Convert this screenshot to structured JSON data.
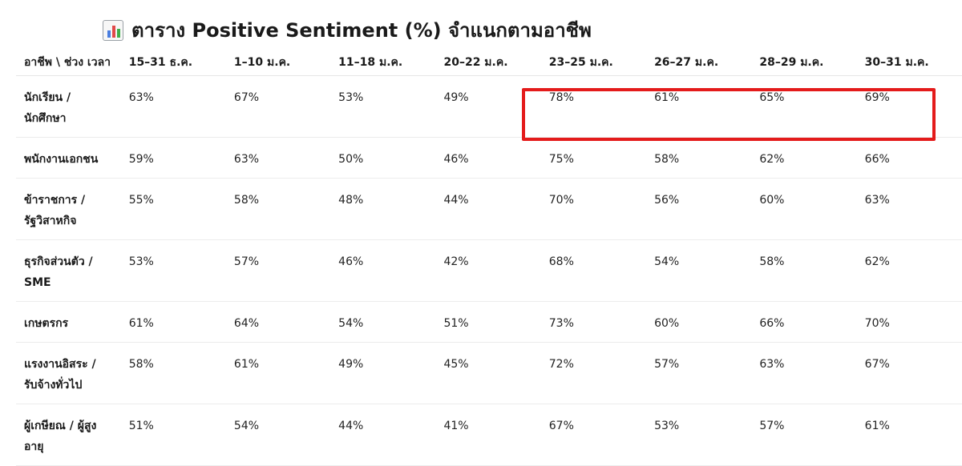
{
  "title": {
    "icon": "bar-chart-icon",
    "text": "ตาราง Positive Sentiment (%) จำแนกตามอาชีพ"
  },
  "table": {
    "corner_header": "อาชีพ \\ ช่วง เวลา",
    "periods": [
      "15–31 ธ.ค.",
      "1–10 ม.ค.",
      "11–18 ม.ค.",
      "20–22 ม.ค.",
      "23–25 ม.ค.",
      "26–27 ม.ค.",
      "28–29 ม.ค.",
      "30–31 ม.ค."
    ],
    "rows": [
      {
        "occupation": "นักเรียน / นักศึกษา",
        "values": [
          "63%",
          "67%",
          "53%",
          "49%",
          "78%",
          "61%",
          "65%",
          "69%"
        ]
      },
      {
        "occupation": "พนักงานเอกชน",
        "values": [
          "59%",
          "63%",
          "50%",
          "46%",
          "75%",
          "58%",
          "62%",
          "66%"
        ]
      },
      {
        "occupation": "ข้าราชการ / รัฐวิสาหกิจ",
        "values": [
          "55%",
          "58%",
          "48%",
          "44%",
          "70%",
          "56%",
          "60%",
          "63%"
        ]
      },
      {
        "occupation": "ธุรกิจส่วนตัว / SME",
        "values": [
          "53%",
          "57%",
          "46%",
          "42%",
          "68%",
          "54%",
          "58%",
          "62%"
        ]
      },
      {
        "occupation": "เกษตรกร",
        "values": [
          "61%",
          "64%",
          "54%",
          "51%",
          "73%",
          "60%",
          "66%",
          "70%"
        ]
      },
      {
        "occupation": "แรงงานอิสระ / รับจ้างทั่วไป",
        "values": [
          "58%",
          "61%",
          "49%",
          "45%",
          "72%",
          "57%",
          "63%",
          "67%"
        ]
      },
      {
        "occupation": "ผู้เกษียณ / ผู้สูง อายุ",
        "values": [
          "51%",
          "54%",
          "44%",
          "41%",
          "67%",
          "53%",
          "57%",
          "61%"
        ]
      }
    ]
  },
  "highlight": {
    "color": "#e41b1b",
    "row": "นักเรียน / นักศึกษา",
    "periods": [
      "23–25 ม.ค.",
      "26–27 ม.ค.",
      "28–29 ม.ค.",
      "30–31 ม.ค."
    ]
  }
}
